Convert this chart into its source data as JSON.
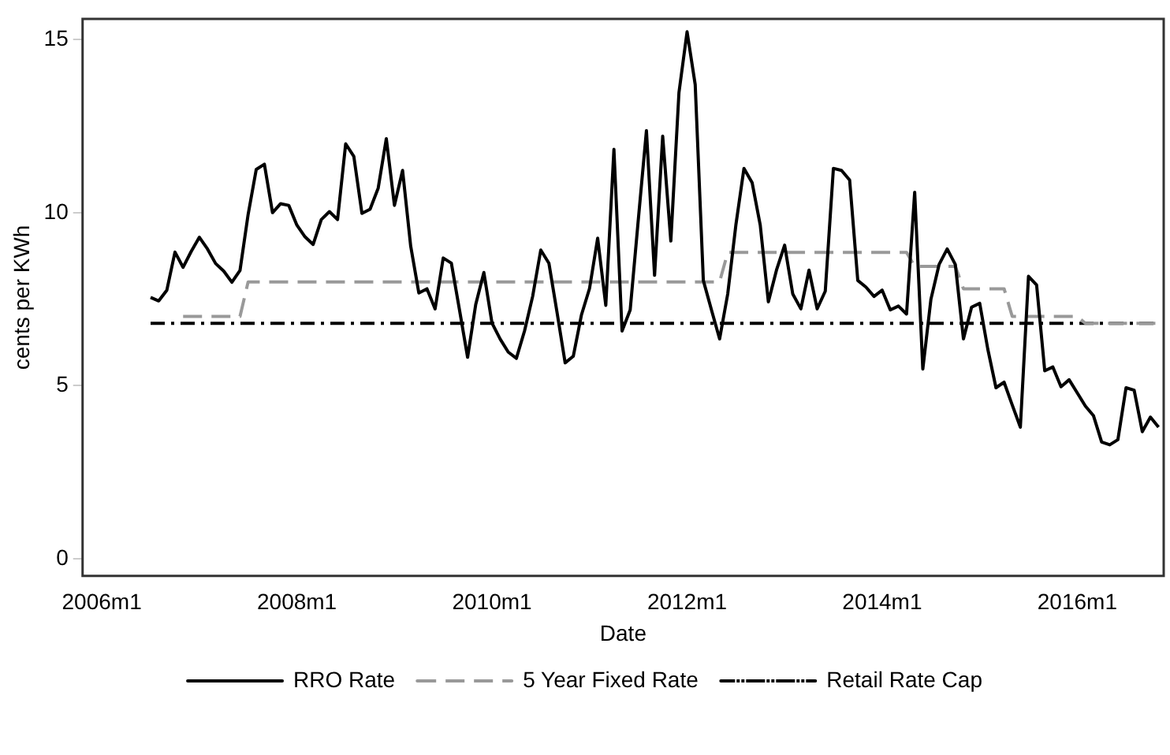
{
  "chart_data": {
    "type": "line",
    "xlabel": "Date",
    "ylabel": "cents per KWh",
    "xlim": [
      "2005-10-20",
      "2016-11-20"
    ],
    "xticks": [
      {
        "value": "2006-01",
        "label": "2006m1"
      },
      {
        "value": "2008-01",
        "label": "2008m1"
      },
      {
        "value": "2010-01",
        "label": "2010m1"
      },
      {
        "value": "2012-01",
        "label": "2012m1"
      },
      {
        "value": "2014-01",
        "label": "2014m1"
      },
      {
        "value": "2016-01",
        "label": "2016m1"
      }
    ],
    "ylim": [
      -0.5,
      15.6
    ],
    "yticks": [
      0,
      5,
      10,
      15
    ],
    "grid": false,
    "legend": "bottom",
    "marker": "none",
    "series": [
      {
        "name": "RRO Rate",
        "color": "#000000",
        "line_style": "solid",
        "x": [
          "2006-07",
          "2006-08",
          "2006-09",
          "2006-10",
          "2006-11",
          "2006-12",
          "2007-01",
          "2007-02",
          "2007-03",
          "2007-04",
          "2007-05",
          "2007-06",
          "2007-07",
          "2007-08",
          "2007-09",
          "2007-10",
          "2007-11",
          "2007-12",
          "2008-01",
          "2008-02",
          "2008-03",
          "2008-04",
          "2008-05",
          "2008-06",
          "2008-07",
          "2008-08",
          "2008-09",
          "2008-10",
          "2008-11",
          "2008-12",
          "2009-01",
          "2009-02",
          "2009-03",
          "2009-04",
          "2009-05",
          "2009-06",
          "2009-07",
          "2009-08",
          "2009-09",
          "2009-10",
          "2009-11",
          "2009-12",
          "2010-01",
          "2010-02",
          "2010-03",
          "2010-04",
          "2010-05",
          "2010-06",
          "2010-07",
          "2010-08",
          "2010-09",
          "2010-10",
          "2010-11",
          "2010-12",
          "2011-01",
          "2011-02",
          "2011-03",
          "2011-04",
          "2011-05",
          "2011-06",
          "2011-07",
          "2011-08",
          "2011-09",
          "2011-10",
          "2011-11",
          "2011-12",
          "2012-01",
          "2012-02",
          "2012-03",
          "2012-04",
          "2012-05",
          "2012-06",
          "2012-07",
          "2012-08",
          "2012-09",
          "2012-10",
          "2012-11",
          "2012-12",
          "2013-01",
          "2013-02",
          "2013-03",
          "2013-04",
          "2013-05",
          "2013-06",
          "2013-07",
          "2013-08",
          "2013-09",
          "2013-10",
          "2013-11",
          "2013-12",
          "2014-01",
          "2014-02",
          "2014-03",
          "2014-04",
          "2014-05",
          "2014-06",
          "2014-07",
          "2014-08",
          "2014-09",
          "2014-10",
          "2014-11",
          "2014-12",
          "2015-01",
          "2015-02",
          "2015-03",
          "2015-04",
          "2015-05",
          "2015-06",
          "2015-07",
          "2015-08",
          "2015-09",
          "2015-10",
          "2015-11",
          "2015-12",
          "2016-01",
          "2016-02",
          "2016-03",
          "2016-04",
          "2016-05",
          "2016-06",
          "2016-07",
          "2016-08",
          "2016-09",
          "2016-10",
          "2016-11"
        ],
        "values": [
          7.55,
          7.45,
          7.76,
          8.86,
          8.42,
          8.88,
          9.29,
          8.95,
          8.53,
          8.31,
          7.99,
          8.33,
          9.95,
          11.25,
          11.4,
          10.0,
          10.26,
          10.21,
          9.64,
          9.3,
          9.08,
          9.8,
          10.03,
          9.8,
          11.99,
          11.63,
          9.98,
          10.1,
          10.71,
          12.14,
          10.21,
          11.22,
          9.03,
          7.68,
          7.8,
          7.22,
          8.69,
          8.54,
          7.19,
          5.82,
          7.35,
          8.27,
          6.81,
          6.35,
          5.97,
          5.79,
          6.58,
          7.58,
          8.92,
          8.54,
          7.12,
          5.66,
          5.85,
          7.04,
          7.81,
          9.26,
          7.32,
          11.83,
          6.58,
          7.19,
          9.8,
          12.37,
          8.19,
          12.21,
          9.18,
          13.47,
          15.23,
          13.7,
          8.04,
          7.19,
          6.35,
          7.65,
          9.64,
          11.28,
          10.87,
          9.64,
          7.42,
          8.34,
          9.06,
          7.65,
          7.22,
          8.34,
          7.22,
          7.73,
          11.28,
          11.22,
          10.94,
          8.04,
          7.85,
          7.58,
          7.76,
          7.19,
          7.3,
          7.07,
          10.59,
          5.48,
          7.5,
          8.5,
          8.95,
          8.5,
          6.35,
          7.27,
          7.38,
          6.05,
          4.94,
          5.1,
          4.44,
          3.8,
          8.16,
          7.91,
          5.43,
          5.54,
          4.97,
          5.17,
          4.79,
          4.41,
          4.13,
          3.37,
          3.29,
          3.44,
          4.94,
          4.87,
          3.67,
          4.09,
          3.8
        ]
      },
      {
        "name": "5 Year Fixed Rate",
        "color": "#999999",
        "line_style": "dashed",
        "x": [
          "2006-11",
          "2007-06",
          "2007-07",
          "2012-05",
          "2012-06",
          "2014-04",
          "2014-05",
          "2014-10",
          "2014-11",
          "2015-04",
          "2015-05",
          "2016-01",
          "2016-02",
          "2016-11"
        ],
        "values": [
          7.0,
          7.0,
          8.0,
          8.0,
          8.85,
          8.85,
          8.45,
          8.45,
          7.8,
          7.8,
          7.0,
          7.0,
          6.8,
          6.8
        ]
      },
      {
        "name": "Retail Rate Cap",
        "color": "#000000",
        "line_style": "dashdot",
        "x": [
          "2006-07",
          "2016-11"
        ],
        "values": [
          6.8,
          6.8
        ]
      }
    ]
  }
}
